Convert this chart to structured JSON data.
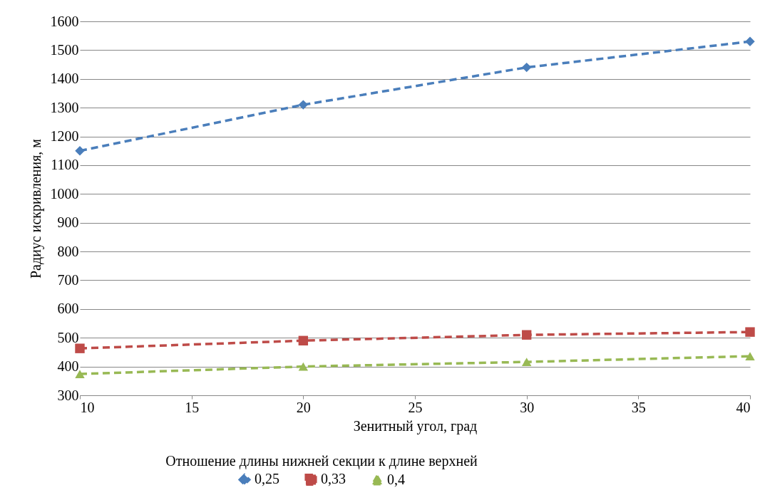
{
  "chart_data": {
    "type": "line",
    "xlabel": "Зенитный угол, град",
    "ylabel": "Радиус искривления, м",
    "legend_title": "Отношение длины нижней секции к длине верхней",
    "x": [
      10,
      20,
      30,
      40
    ],
    "series": [
      {
        "name": "0,25",
        "color": "#4a7ebb",
        "marker": "diamond",
        "line_style": "dashed",
        "values": [
          1150,
          1310,
          1440,
          1530
        ]
      },
      {
        "name": "0,33",
        "color": "#be4b48",
        "marker": "square",
        "line_style": "dashed",
        "values": [
          463,
          490,
          510,
          520
        ]
      },
      {
        "name": "0,4",
        "color": "#98b954",
        "marker": "triangle",
        "line_style": "dashed",
        "values": [
          374,
          400,
          416,
          436
        ]
      }
    ],
    "xlim": [
      10,
      40
    ],
    "xticks": [
      10,
      15,
      20,
      25,
      30,
      35,
      40
    ],
    "ylim": [
      300,
      1600
    ],
    "yticks": [
      300,
      400,
      500,
      600,
      700,
      800,
      900,
      1000,
      1100,
      1200,
      1300,
      1400,
      1500,
      1600
    ],
    "grid": "y",
    "legend": "bottom"
  }
}
